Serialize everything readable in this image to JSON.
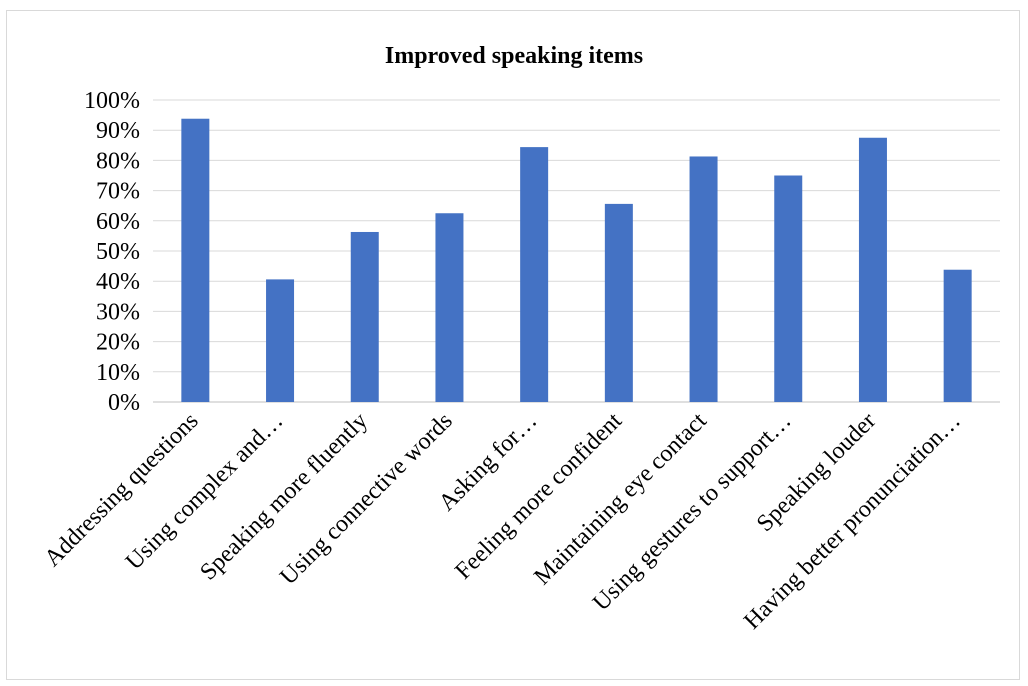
{
  "chart_data": {
    "type": "bar",
    "title": "Improved speaking items",
    "xlabel": "",
    "ylabel": "",
    "categories": [
      "Addressing questions",
      "Using complex and…",
      "Speaking more fluently",
      "Using connective words",
      "Asking for…",
      "Feeling more confident",
      "Maintaining eye contact",
      "Using gestures to support…",
      "Speaking louder",
      "Having better pronunciation…"
    ],
    "values": [
      0.938,
      0.406,
      0.563,
      0.625,
      0.844,
      0.656,
      0.813,
      0.75,
      0.875,
      0.438
    ],
    "ylim": [
      0,
      1
    ],
    "yticks": [
      "0%",
      "10%",
      "20%",
      "30%",
      "40%",
      "50%",
      "60%",
      "70%",
      "80%",
      "90%",
      "100%"
    ],
    "grid": true,
    "legend": "none",
    "colors": {
      "bar": "#4472c4",
      "grid": "#d9d9d9",
      "axis": "#bfbfbf"
    }
  }
}
